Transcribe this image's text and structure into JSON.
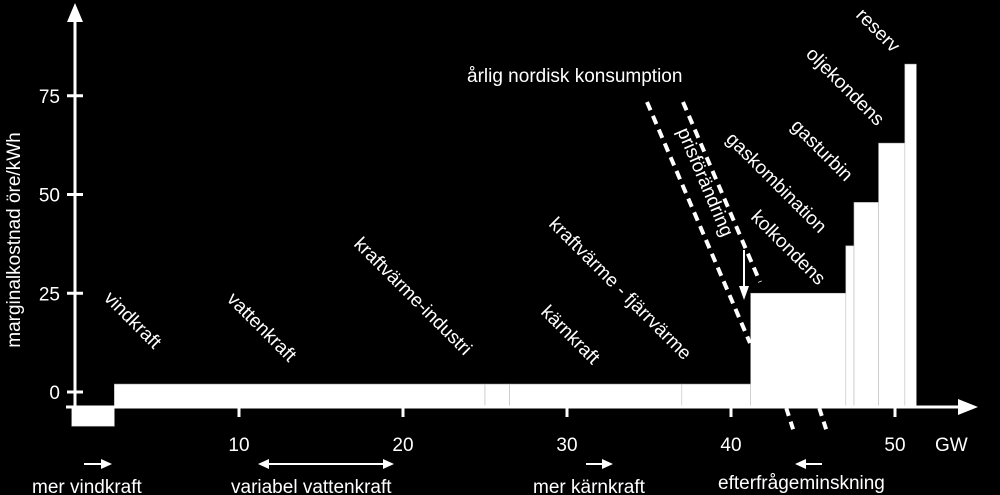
{
  "chart_data": {
    "type": "step-supply-curve",
    "ylabel": "marginalkostnad öre/kWh",
    "xunit": "GW",
    "xticks": [
      10,
      20,
      30,
      40,
      50
    ],
    "yticks": [
      0,
      25,
      50,
      75
    ],
    "consumption_label": "årlig nordisk konsumption",
    "price_change_label": "prisförändring",
    "segments": [
      {
        "label": "vindkraft",
        "x0": -0.2,
        "x1": 2.4,
        "y": -6
      },
      {
        "label": "vattenkraft",
        "x0": 2.4,
        "x1": 25,
        "y": 2
      },
      {
        "label": "kraftvärme-industri",
        "x0": 25,
        "x1": 26.5,
        "y": 2
      },
      {
        "label": "kärnkraft",
        "x0": 26.5,
        "x1": 37,
        "y": 2
      },
      {
        "label": "kraftvärme - fjärrvärme",
        "x0": 37,
        "x1": 41.2,
        "y": 2
      },
      {
        "label": "kolkondens",
        "x0": 41.2,
        "x1": 47,
        "y": 25
      },
      {
        "label": "gaskombination",
        "x0": 47,
        "x1": 47.5,
        "y": 37
      },
      {
        "label": "gasturbin",
        "x0": 47.5,
        "x1": 49,
        "y": 48
      },
      {
        "label": "oljekondens",
        "x0": 49,
        "x1": 50.6,
        "y": 63
      },
      {
        "label": "reserv",
        "x0": 50.6,
        "x1": 51.3,
        "y": 83
      }
    ],
    "bottom_labels": {
      "wind": "mer vindkraft",
      "hydro": "variabel vattenkraft",
      "nuclear": "mer kärnkraft",
      "demand": "efterfrågeminskning"
    }
  }
}
